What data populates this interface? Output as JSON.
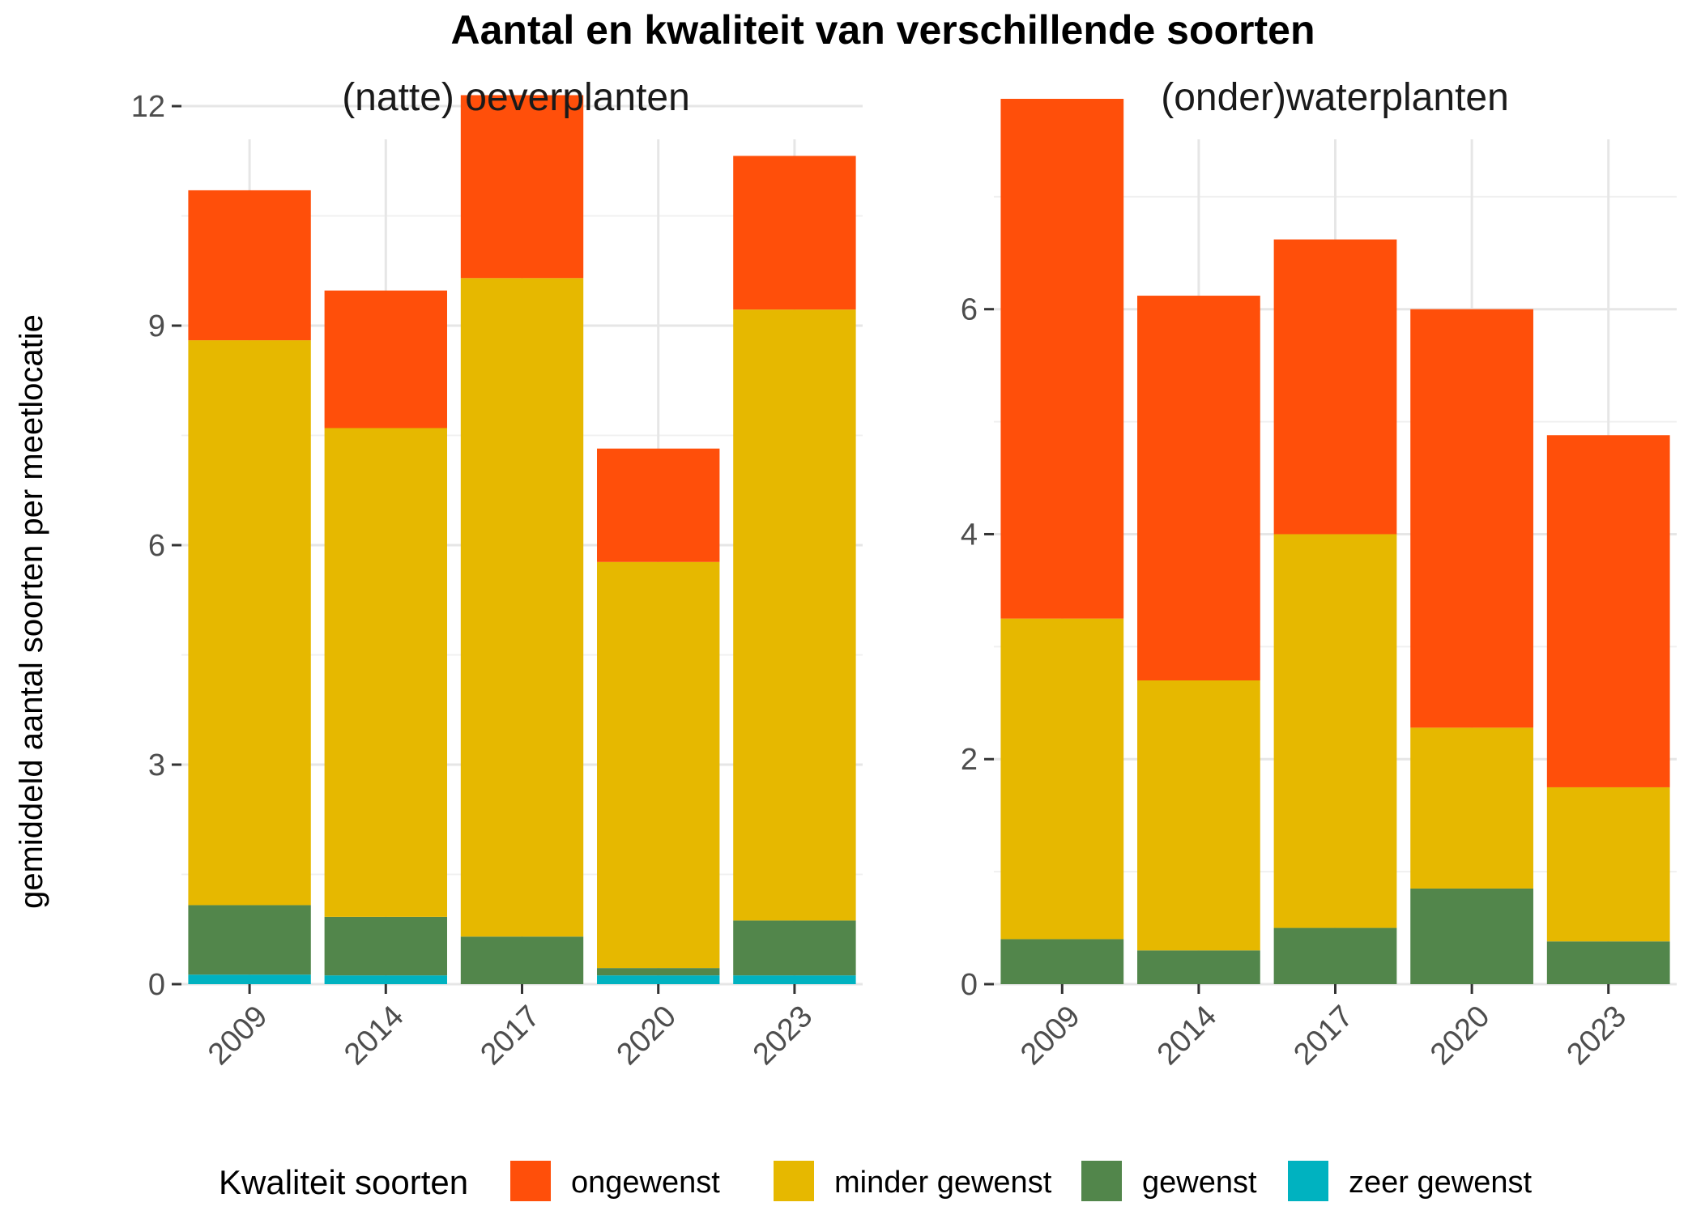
{
  "title": "Aantal en kwaliteit van verschillende soorten",
  "ylabel": "gemiddeld aantal soorten per meetlocatie",
  "legend": {
    "title": "Kwaliteit soorten",
    "position": "bottom",
    "items": [
      {
        "name": "ongewenst",
        "color": "#FF4F0A"
      },
      {
        "name": "minder gewenst",
        "color": "#E6B800"
      },
      {
        "name": "gewenst",
        "color": "#52864B"
      },
      {
        "name": "zeer gewenst",
        "color": "#00B2C0"
      }
    ]
  },
  "chart_data": [
    {
      "type": "bar",
      "stacked": true,
      "title": "(natte) oeverplanten",
      "categories": [
        "2009",
        "2014",
        "2017",
        "2020",
        "2023"
      ],
      "ylim": [
        0,
        12.1
      ],
      "yticks": [
        0,
        3,
        6,
        9,
        12
      ],
      "grid": true,
      "series": [
        {
          "name": "zeer gewenst",
          "values": [
            0.13,
            0.12,
            0.0,
            0.12,
            0.12
          ]
        },
        {
          "name": "gewenst",
          "values": [
            0.95,
            0.8,
            0.65,
            0.1,
            0.75
          ]
        },
        {
          "name": "minder gewenst",
          "values": [
            7.72,
            6.68,
            9.0,
            5.55,
            8.35
          ]
        },
        {
          "name": "ongewenst",
          "values": [
            2.05,
            1.88,
            2.5,
            1.55,
            2.1
          ]
        }
      ]
    },
    {
      "type": "bar",
      "stacked": true,
      "title": "(onder)waterplanten",
      "categories": [
        "2009",
        "2014",
        "2017",
        "2020",
        "2023"
      ],
      "ylim": [
        0,
        7.87
      ],
      "yticks": [
        0,
        2,
        4,
        6
      ],
      "grid": true,
      "series": [
        {
          "name": "zeer gewenst",
          "values": [
            0.0,
            0.0,
            0.0,
            0.0,
            0.0
          ]
        },
        {
          "name": "gewenst",
          "values": [
            0.4,
            0.3,
            0.5,
            0.85,
            0.38
          ]
        },
        {
          "name": "minder gewenst",
          "values": [
            2.85,
            2.4,
            3.5,
            1.43,
            1.37
          ]
        },
        {
          "name": "ongewenst",
          "values": [
            4.62,
            3.42,
            2.62,
            3.72,
            3.13
          ]
        }
      ]
    }
  ]
}
